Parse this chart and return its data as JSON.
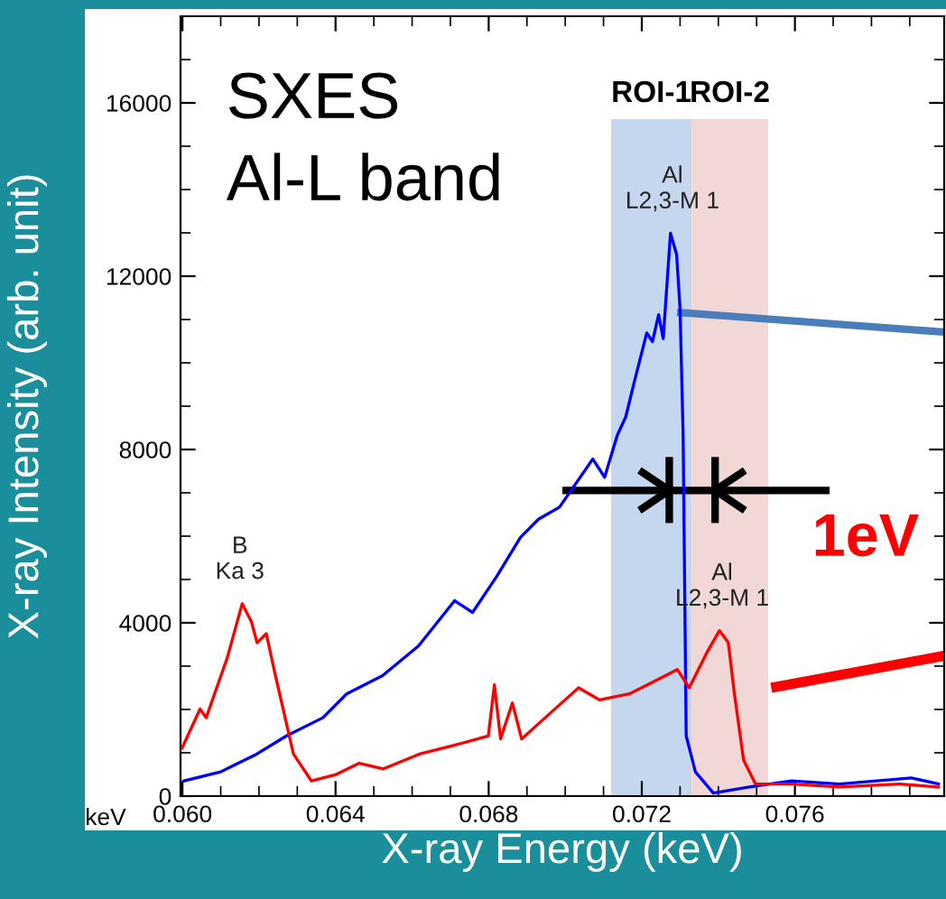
{
  "chart_data": {
    "type": "line",
    "xlabel": "X-ray Energy (keV)",
    "ylabel": "X-ray Intensity (arb. unit)",
    "xlim": [
      0.05995,
      0.0799
    ],
    "ylim": [
      0,
      18000
    ],
    "xticks": [
      {
        "value": 0.06,
        "label": "0.060"
      },
      {
        "value": 0.064,
        "label": "0.064"
      },
      {
        "value": 0.068,
        "label": "0.068"
      },
      {
        "value": 0.072,
        "label": "0.072"
      },
      {
        "value": 0.076,
        "label": "0.076"
      }
    ],
    "yticks": [
      0,
      4000,
      8000,
      12000,
      16000
    ],
    "grid": false,
    "legend": false,
    "marker": "none",
    "line_style": "solid",
    "series": [
      {
        "color": "#0000ff",
        "x": [
          0.06004,
          0.061,
          0.06194,
          0.06272,
          0.06367,
          0.06429,
          0.06523,
          0.06617,
          0.06711,
          0.06758,
          0.06821,
          0.06883,
          0.0693,
          0.06985,
          0.07072,
          0.07103,
          0.07136,
          0.07158,
          0.07181,
          0.07213,
          0.07228,
          0.07244,
          0.07256,
          0.07275,
          0.07291,
          0.073,
          0.07308,
          0.07316,
          0.0734,
          0.07387,
          0.07481,
          0.07591,
          0.07716,
          0.07904,
          0.07975
        ],
        "values": [
          350,
          560,
          970,
          1390,
          1810,
          2360,
          2780,
          3470,
          4510,
          4240,
          5070,
          5970,
          6390,
          6670,
          7780,
          7360,
          8330,
          8750,
          9580,
          10690,
          10490,
          11110,
          10560,
          12990,
          12500,
          11250,
          8330,
          1390,
          560,
          70,
          210,
          350,
          280,
          420,
          280
        ]
      },
      {
        "color": "#ff0000",
        "x": [
          0.05999,
          0.06046,
          0.06062,
          0.06117,
          0.06156,
          0.0618,
          0.06195,
          0.06219,
          0.06243,
          0.0629,
          0.06337,
          0.06399,
          0.06462,
          0.06525,
          0.06619,
          0.06713,
          0.06799,
          0.06815,
          0.06831,
          0.06862,
          0.06886,
          0.06964,
          0.07035,
          0.0709,
          0.07168,
          0.07246,
          0.07293,
          0.07324,
          0.07371,
          0.07403,
          0.07426,
          0.07442,
          0.07466,
          0.07497,
          0.07591,
          0.07716,
          0.07873,
          0.07975
        ],
        "values": [
          1110,
          2010,
          1810,
          3190,
          4440,
          4030,
          3540,
          3750,
          2780,
          970,
          350,
          490,
          760,
          630,
          970,
          1180,
          1390,
          2570,
          1320,
          2150,
          1320,
          1940,
          2500,
          2220,
          2360,
          2710,
          2920,
          2500,
          3330,
          3820,
          3540,
          2360,
          830,
          280,
          280,
          210,
          280,
          210
        ]
      }
    ],
    "bands": [
      {
        "axis": "x",
        "from": 0.0712,
        "to": 0.0733,
        "label": "ROI-1",
        "color": "#c5d7ee"
      },
      {
        "axis": "x",
        "from": 0.0733,
        "to": 0.0753,
        "label": "ROI-2",
        "color": "#f2d7d7"
      }
    ],
    "annotations": [
      "SXES\nAl-L band",
      "keV",
      {
        "text": "1eV",
        "x": 0.0735,
        "y": 6900
      },
      {
        "text": "B\nKa 3",
        "x": 0.0615,
        "y": 4440
      },
      {
        "text": "Al\nL2,3-M 1",
        "x": 0.0728,
        "y": 12990
      },
      {
        "text": "Al\nL2,3-M 1",
        "x": 0.0741,
        "y": 3820
      }
    ]
  }
}
